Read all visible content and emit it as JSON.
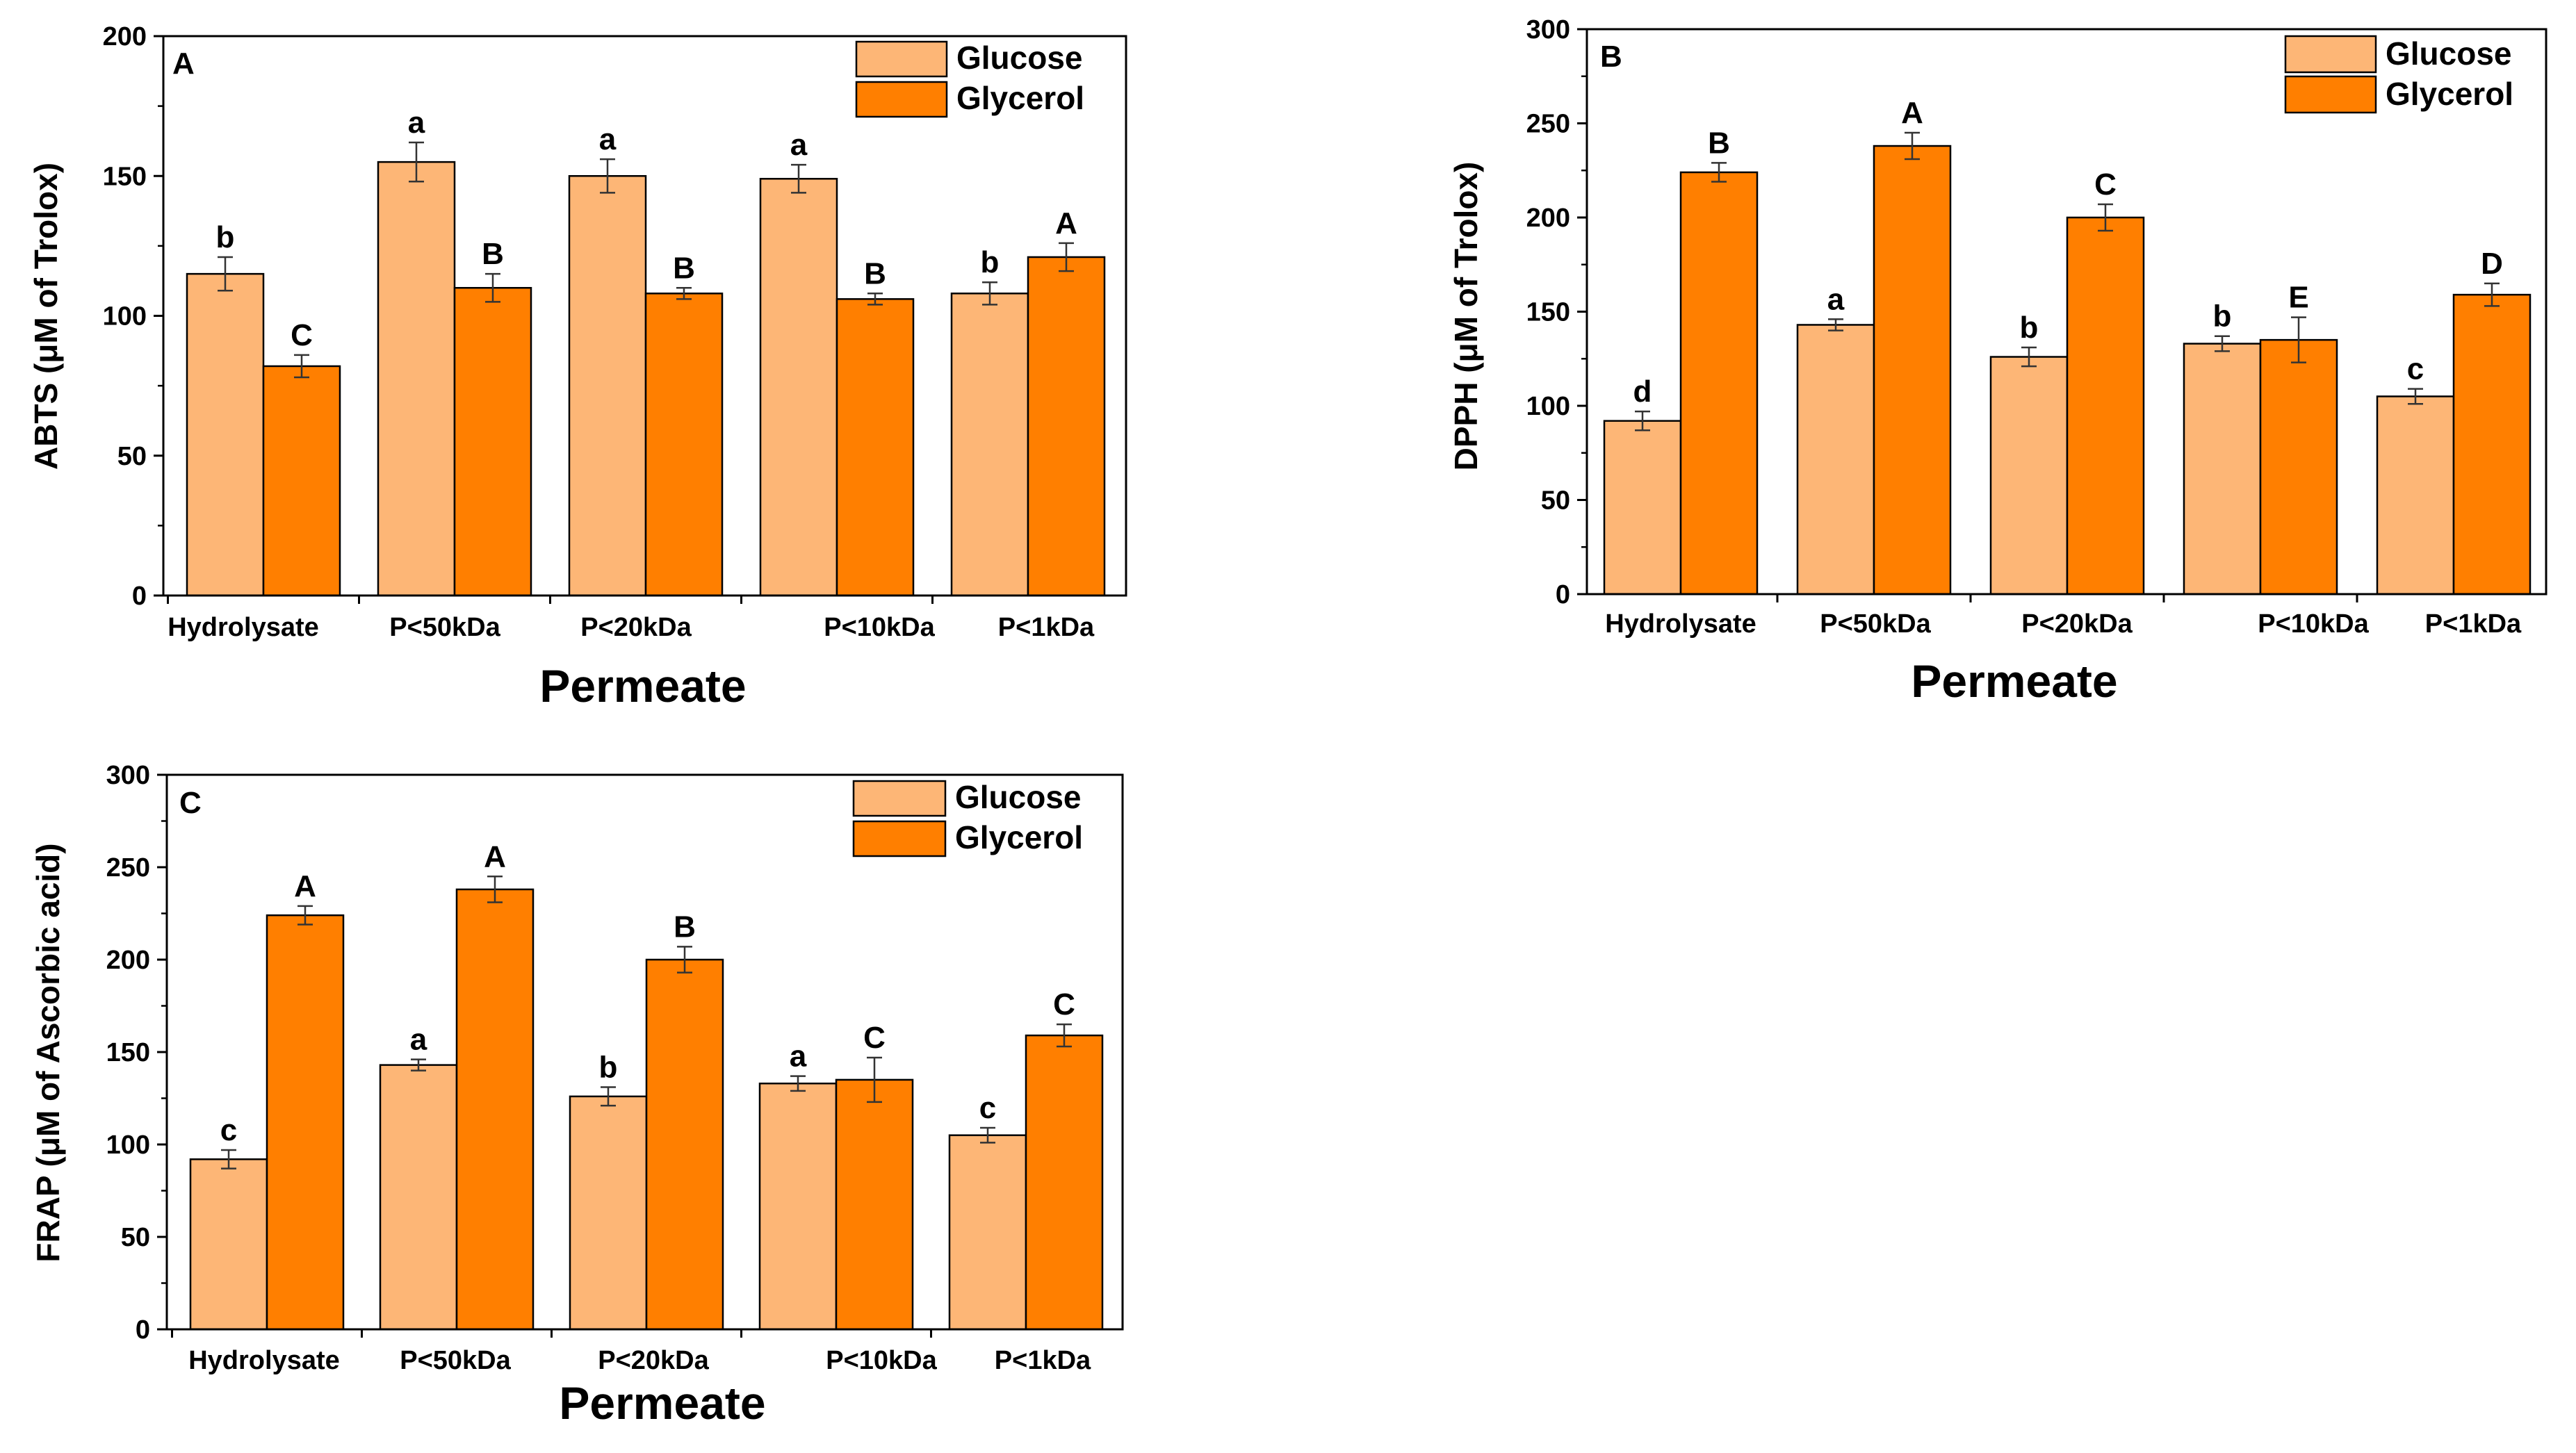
{
  "colors": {
    "glucose": "#FDB676",
    "glycerol": "#FF7F00",
    "frame": "#000000",
    "error": "#333333"
  },
  "chart_data": [
    {
      "panel": "A",
      "type": "bar",
      "title": "",
      "xlabel": "Permeate",
      "ylabel": "ABTS (μM of Trolox)",
      "ylim": [
        0,
        200
      ],
      "yticks": [
        "0",
        "50",
        "100",
        "150",
        "200"
      ],
      "categories": [
        "Hydrolysate",
        "P<50kDa",
        "P<20kDa",
        "P<10kDa",
        "P<1kDa"
      ],
      "legend_position": "top-right",
      "series": [
        {
          "name": "Glucose",
          "values": [
            115,
            155,
            150,
            149,
            108
          ],
          "errors": [
            6,
            7,
            6,
            5,
            4
          ],
          "letters": [
            "b",
            "a",
            "a",
            "a",
            "b"
          ]
        },
        {
          "name": "Glycerol",
          "values": [
            82,
            110,
            108,
            106,
            121
          ],
          "errors": [
            4,
            5,
            2,
            2,
            5
          ],
          "letters": [
            "C",
            "B",
            "B",
            "B",
            "A"
          ]
        }
      ]
    },
    {
      "panel": "B",
      "type": "bar",
      "title": "",
      "xlabel": "Permeate",
      "ylabel": "DPPH (μM of Trolox)",
      "ylim": [
        0,
        300
      ],
      "yticks": [
        "0",
        "50",
        "100",
        "150",
        "200",
        "250",
        "300"
      ],
      "categories": [
        "Hydrolysate",
        "P<50kDa",
        "P<20kDa",
        "P<10kDa",
        "P<1kDa"
      ],
      "legend_position": "top-right",
      "series": [
        {
          "name": "Glucose",
          "values": [
            92,
            143,
            126,
            133,
            105
          ],
          "errors": [
            5,
            3,
            5,
            4,
            4
          ],
          "letters": [
            "d",
            "a",
            "b",
            "b",
            "c"
          ]
        },
        {
          "name": "Glycerol",
          "values": [
            224,
            238,
            200,
            135,
            159
          ],
          "errors": [
            5,
            7,
            7,
            12,
            6
          ],
          "letters": [
            "B",
            "A",
            "C",
            "E",
            "D"
          ]
        }
      ]
    },
    {
      "panel": "C",
      "type": "bar",
      "title": "",
      "xlabel": "Permeate",
      "ylabel": "FRAP (μM of Ascorbic acid)",
      "ylim": [
        0,
        300
      ],
      "yticks": [
        "0",
        "50",
        "100",
        "150",
        "200",
        "250",
        "300"
      ],
      "categories": [
        "Hydrolysate",
        "P<50kDa",
        "P<20kDa",
        "P<10kDa",
        "P<1kDa"
      ],
      "legend_position": "top-right",
      "series": [
        {
          "name": "Glucose",
          "values": [
            92,
            143,
            126,
            133,
            105
          ],
          "errors": [
            5,
            3,
            5,
            4,
            4
          ],
          "letters": [
            "c",
            "a",
            "b",
            "a",
            "c"
          ]
        },
        {
          "name": "Glycerol",
          "values": [
            224,
            238,
            200,
            135,
            159
          ],
          "errors": [
            5,
            7,
            7,
            12,
            6
          ],
          "letters": [
            "A",
            "A",
            "B",
            "C",
            "C"
          ]
        }
      ]
    }
  ]
}
